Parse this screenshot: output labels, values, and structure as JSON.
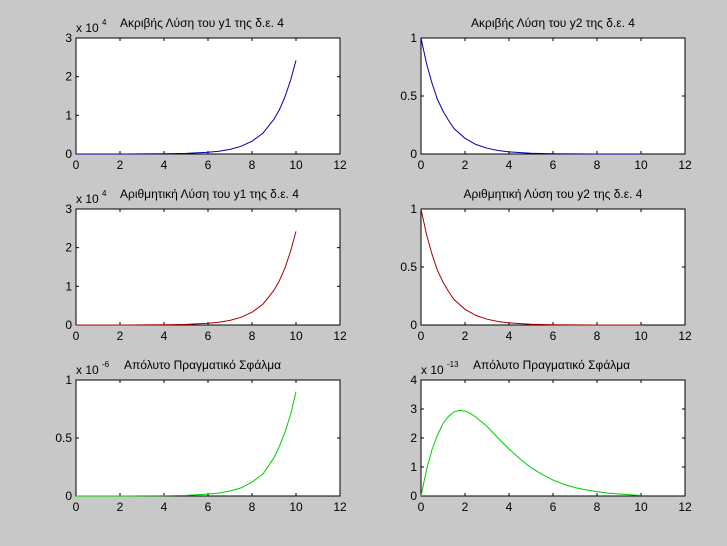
{
  "chart_data": [
    {
      "type": "line",
      "title": "Ακριβής Λύση του y1 της δ.ε. 4",
      "multiplier": "x 10",
      "exponent": "4",
      "xlim": [
        0,
        12
      ],
      "ylim": [
        0,
        3
      ],
      "xticks": [
        "0",
        "2",
        "4",
        "6",
        "8",
        "10",
        "12"
      ],
      "yticks": [
        "0",
        "1",
        "2",
        "3"
      ],
      "color": "#0000aa",
      "series": [
        {
          "x": [
            0,
            1,
            2,
            3,
            4,
            5,
            6,
            6.5,
            7,
            7.5,
            8,
            8.5,
            9,
            9.25,
            9.5,
            9.75,
            10
          ],
          "y": [
            0.0,
            0.0003,
            0.0008,
            0.002,
            0.006,
            0.016,
            0.044,
            0.071,
            0.12,
            0.2,
            0.33,
            0.54,
            0.9,
            1.15,
            1.48,
            1.9,
            2.42
          ]
        }
      ]
    },
    {
      "type": "line",
      "title": "Ακριβής Λύση του y2 της δ.ε. 4",
      "xlim": [
        0,
        12
      ],
      "ylim": [
        0,
        1
      ],
      "xticks": [
        "0",
        "2",
        "4",
        "6",
        "8",
        "10",
        "12"
      ],
      "yticks": [
        "0",
        "0.5",
        "1"
      ],
      "color": "#0000aa",
      "series": [
        {
          "x": [
            0,
            0.25,
            0.5,
            0.75,
            1,
            1.25,
            1.5,
            2,
            2.5,
            3,
            3.5,
            4,
            5,
            6,
            7,
            8,
            9,
            10
          ],
          "y": [
            1.0,
            0.78,
            0.61,
            0.47,
            0.37,
            0.29,
            0.22,
            0.135,
            0.082,
            0.05,
            0.03,
            0.018,
            0.0067,
            0.0025,
            0.0009,
            0.0003,
            0.0001,
            0.0
          ]
        }
      ]
    },
    {
      "type": "line",
      "title": "Αριθμητική Λύση του y1 της δ.ε. 4",
      "multiplier": "x 10",
      "exponent": "4",
      "xlim": [
        0,
        12
      ],
      "ylim": [
        0,
        3
      ],
      "xticks": [
        "0",
        "2",
        "4",
        "6",
        "8",
        "10",
        "12"
      ],
      "yticks": [
        "0",
        "1",
        "2",
        "3"
      ],
      "color": "#aa0000",
      "series": [
        {
          "x": [
            0,
            1,
            2,
            3,
            4,
            5,
            6,
            6.5,
            7,
            7.5,
            8,
            8.5,
            9,
            9.25,
            9.5,
            9.75,
            10
          ],
          "y": [
            0.0,
            0.0003,
            0.0008,
            0.002,
            0.006,
            0.016,
            0.044,
            0.071,
            0.12,
            0.2,
            0.33,
            0.54,
            0.9,
            1.15,
            1.48,
            1.9,
            2.42
          ]
        }
      ]
    },
    {
      "type": "line",
      "title": "Αριθμητική Λύση του y2 της δ.ε. 4",
      "xlim": [
        0,
        12
      ],
      "ylim": [
        0,
        1
      ],
      "xticks": [
        "0",
        "2",
        "4",
        "6",
        "8",
        "10",
        "12"
      ],
      "yticks": [
        "0",
        "0.5",
        "1"
      ],
      "color": "#aa0000",
      "series": [
        {
          "x": [
            0,
            0.25,
            0.5,
            0.75,
            1,
            1.25,
            1.5,
            2,
            2.5,
            3,
            3.5,
            4,
            5,
            6,
            7,
            8,
            9,
            10
          ],
          "y": [
            1.0,
            0.78,
            0.61,
            0.47,
            0.37,
            0.29,
            0.22,
            0.135,
            0.082,
            0.05,
            0.03,
            0.018,
            0.0067,
            0.0025,
            0.0009,
            0.0003,
            0.0001,
            0.0
          ]
        }
      ]
    },
    {
      "type": "line",
      "title": "Απόλυτο Πραγματικό Σφάλμα",
      "multiplier": "x 10",
      "exponent": "-6",
      "xlim": [
        0,
        12
      ],
      "ylim": [
        0,
        1
      ],
      "xticks": [
        "0",
        "2",
        "4",
        "6",
        "8",
        "10",
        "12"
      ],
      "yticks": [
        "0",
        "0.5",
        "1"
      ],
      "color": "#00cc00",
      "series": [
        {
          "x": [
            0,
            1,
            2,
            3,
            4,
            5,
            6,
            6.5,
            7,
            7.5,
            8,
            8.5,
            9,
            9.25,
            9.5,
            9.75,
            10
          ],
          "y": [
            0.0,
            0.0001,
            0.0003,
            0.0008,
            0.002,
            0.005,
            0.016,
            0.026,
            0.043,
            0.07,
            0.12,
            0.19,
            0.33,
            0.43,
            0.55,
            0.7,
            0.9
          ]
        }
      ]
    },
    {
      "type": "line",
      "title": "Απόλυτο Πραγματικό Σφάλμα",
      "multiplier": "x 10",
      "exponent": "-13",
      "xlim": [
        0,
        12
      ],
      "ylim": [
        0,
        4
      ],
      "xticks": [
        "0",
        "2",
        "4",
        "6",
        "8",
        "10",
        "12"
      ],
      "yticks": [
        "0",
        "1",
        "2",
        "3",
        "4"
      ],
      "color": "#00cc00",
      "series": [
        {
          "x": [
            0,
            0.25,
            0.5,
            0.75,
            1,
            1.25,
            1.5,
            1.75,
            2,
            2.25,
            2.5,
            3,
            3.5,
            4,
            4.5,
            5,
            5.5,
            6,
            6.5,
            7,
            7.5,
            8,
            8.5,
            9,
            9.5,
            10
          ],
          "y": [
            0.0,
            0.9,
            1.6,
            2.1,
            2.5,
            2.75,
            2.9,
            2.95,
            2.93,
            2.85,
            2.72,
            2.4,
            2.0,
            1.62,
            1.28,
            0.98,
            0.75,
            0.55,
            0.4,
            0.29,
            0.21,
            0.15,
            0.1,
            0.07,
            0.04,
            0.02
          ]
        }
      ]
    }
  ]
}
